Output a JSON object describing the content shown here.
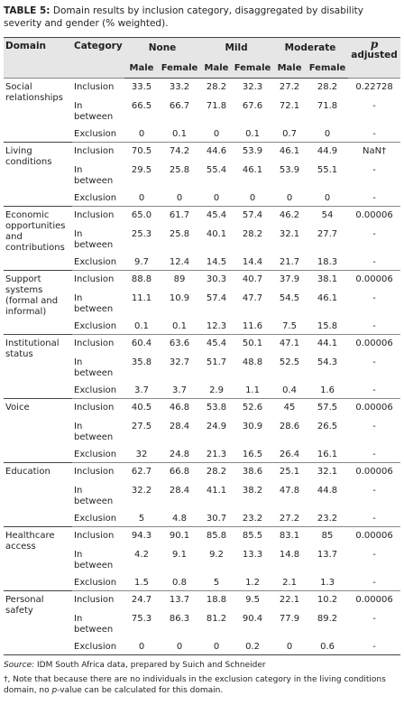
{
  "title": {
    "label": "TABLE 5:",
    "text": "Domain results by inclusion category, disaggregated by disability severity and gender (% weighted)."
  },
  "table": {
    "headers": {
      "domain": "Domain",
      "category": "Category",
      "groups": [
        "None",
        "Mild",
        "Moderate"
      ],
      "p_symbol": "p",
      "p_text": "adjusted",
      "sub": [
        "Male",
        "Female",
        "Male",
        "Female",
        "Male",
        "Female"
      ]
    },
    "groups": [
      {
        "domain": "Social relationships",
        "rows": [
          {
            "category": "Inclusion",
            "values": [
              "33.5",
              "33.2",
              "28.2",
              "32.3",
              "27.2",
              "28.2",
              "0.22728"
            ]
          },
          {
            "category": "In between",
            "values": [
              "66.5",
              "66.7",
              "71.8",
              "67.6",
              "72.1",
              "71.8",
              "-"
            ]
          },
          {
            "category": "Exclusion",
            "values": [
              "0",
              "0.1",
              "0",
              "0.1",
              "0.7",
              "0",
              "-"
            ]
          }
        ]
      },
      {
        "domain": "Living conditions",
        "rows": [
          {
            "category": "Inclusion",
            "values": [
              "70.5",
              "74.2",
              "44.6",
              "53.9",
              "46.1",
              "44.9",
              "NaN†"
            ]
          },
          {
            "category": "In between",
            "values": [
              "29.5",
              "25.8",
              "55.4",
              "46.1",
              "53.9",
              "55.1",
              "-"
            ]
          },
          {
            "category": "Exclusion",
            "values": [
              "0",
              "0",
              "0",
              "0",
              "0",
              "0",
              "-"
            ]
          }
        ]
      },
      {
        "domain": "Economic opportunities and contributions",
        "rows": [
          {
            "category": "Inclusion",
            "values": [
              "65.0",
              "61.7",
              "45.4",
              "57.4",
              "46.2",
              "54",
              "0.00006"
            ]
          },
          {
            "category": "In between",
            "values": [
              "25.3",
              "25.8",
              "40.1",
              "28.2",
              "32.1",
              "27.7",
              "-"
            ]
          },
          {
            "category": "Exclusion",
            "values": [
              "9.7",
              "12.4",
              "14.5",
              "14.4",
              "21.7",
              "18.3",
              "-"
            ]
          }
        ]
      },
      {
        "domain": "Support systems (formal and informal)",
        "rows": [
          {
            "category": "Inclusion",
            "values": [
              "88.8",
              "89",
              "30.3",
              "40.7",
              "37.9",
              "38.1",
              "0.00006"
            ]
          },
          {
            "category": "In between",
            "values": [
              "11.1",
              "10.9",
              "57.4",
              "47.7",
              "54.5",
              "46.1",
              "-"
            ]
          },
          {
            "category": "Exclusion",
            "values": [
              "0.1",
              "0.1",
              "12.3",
              "11.6",
              "7.5",
              "15.8",
              "-"
            ]
          }
        ]
      },
      {
        "domain": "Institutional status",
        "rows": [
          {
            "category": "Inclusion",
            "values": [
              "60.4",
              "63.6",
              "45.4",
              "50.1",
              "47.1",
              "44.1",
              "0.00006"
            ]
          },
          {
            "category": "In between",
            "values": [
              "35.8",
              "32.7",
              "51.7",
              "48.8",
              "52.5",
              "54.3",
              "-"
            ]
          },
          {
            "category": "Exclusion",
            "values": [
              "3.7",
              "3.7",
              "2.9",
              "1.1",
              "0.4",
              "1.6",
              "-"
            ]
          }
        ]
      },
      {
        "domain": "Voice",
        "rows": [
          {
            "category": "Inclusion",
            "values": [
              "40.5",
              "46.8",
              "53.8",
              "52.6",
              "45",
              "57.5",
              "0.00006"
            ]
          },
          {
            "category": "In between",
            "values": [
              "27.5",
              "28.4",
              "24.9",
              "30.9",
              "28.6",
              "26.5",
              "-"
            ]
          },
          {
            "category": "Exclusion",
            "values": [
              "32",
              "24.8",
              "21.3",
              "16.5",
              "26.4",
              "16.1",
              "-"
            ]
          }
        ]
      },
      {
        "domain": "Education",
        "rows": [
          {
            "category": "Inclusion",
            "values": [
              "62.7",
              "66.8",
              "28.2",
              "38.6",
              "25.1",
              "32.1",
              "0.00006"
            ]
          },
          {
            "category": "In between",
            "values": [
              "32.2",
              "28.4",
              "41.1",
              "38.2",
              "47.8",
              "44.8",
              "-"
            ]
          },
          {
            "category": "Exclusion",
            "values": [
              "5",
              "4.8",
              "30.7",
              "23.2",
              "27.2",
              "23.2",
              "-"
            ]
          }
        ]
      },
      {
        "domain": "Healthcare access",
        "rows": [
          {
            "category": "Inclusion",
            "values": [
              "94.3",
              "90.1",
              "85.8",
              "85.5",
              "83.1",
              "85",
              "0.00006"
            ]
          },
          {
            "category": "In between",
            "values": [
              "4.2",
              "9.1",
              "9.2",
              "13.3",
              "14.8",
              "13.7",
              "-"
            ]
          },
          {
            "category": "Exclusion",
            "values": [
              "1.5",
              "0.8",
              "5",
              "1.2",
              "2.1",
              "1.3",
              "-"
            ]
          }
        ]
      },
      {
        "domain": "Personal safety",
        "rows": [
          {
            "category": "Inclusion",
            "values": [
              "24.7",
              "13.7",
              "18.8",
              "9.5",
              "22.1",
              "10.2",
              "0.00006"
            ]
          },
          {
            "category": "In between",
            "values": [
              "75.3",
              "86.3",
              "81.2",
              "90.4",
              "77.9",
              "89.2",
              "-"
            ]
          },
          {
            "category": "Exclusion",
            "values": [
              "0",
              "0",
              "0",
              "0.2",
              "0",
              "0.6",
              "-"
            ]
          }
        ]
      }
    ]
  },
  "footnotes": {
    "source_label": "Source:",
    "source_text": "IDM South Africa data, prepared by Suich and Schneider",
    "note_before": "†, Note that because there are no individuals in the exclusion category in the living conditions domain, no",
    "note_p": "p",
    "note_after": "-value can be calculated for this domain."
  }
}
